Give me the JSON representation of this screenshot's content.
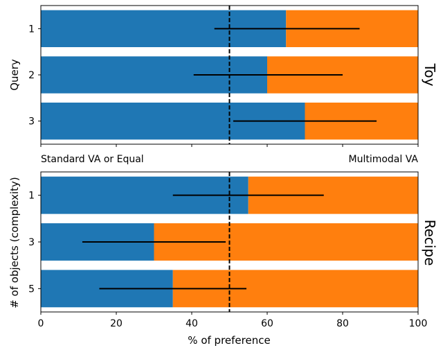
{
  "chart_data": [
    {
      "type": "bar",
      "orientation": "horizontal",
      "stacked": true,
      "facet_label": "Toy",
      "ylabel": "Query",
      "categories": [
        "1",
        "2",
        "3"
      ],
      "series": [
        {
          "color": "#1f77b4",
          "values": [
            65,
            60,
            70
          ]
        },
        {
          "color": "#ff7f0e",
          "values": [
            35,
            40,
            30
          ]
        }
      ],
      "error_bars": [
        {
          "center": 65,
          "low": 46,
          "high": 84.5
        },
        {
          "center": 60,
          "low": 40.5,
          "high": 80
        },
        {
          "center": 70,
          "low": 51,
          "high": 89
        }
      ],
      "xlim": [
        0,
        100
      ],
      "reference_line": 50,
      "x_end_labels": {
        "left": "Standard VA or Equal",
        "right": "Multimodal VA"
      }
    },
    {
      "type": "bar",
      "orientation": "horizontal",
      "stacked": true,
      "facet_label": "Recipe",
      "ylabel": "# of objects (complexity)",
      "xlabel": "% of preference",
      "categories": [
        "1",
        "3",
        "5"
      ],
      "series": [
        {
          "color": "#1f77b4",
          "values": [
            55,
            30,
            35
          ]
        },
        {
          "color": "#ff7f0e",
          "values": [
            45,
            70,
            65
          ]
        }
      ],
      "error_bars": [
        {
          "center": 55,
          "low": 35,
          "high": 75
        },
        {
          "center": 30,
          "low": 11,
          "high": 49
        },
        {
          "center": 35,
          "low": 15.5,
          "high": 54.5
        }
      ],
      "xlim": [
        0,
        100
      ],
      "xticks": [
        "0",
        "20",
        "40",
        "60",
        "80",
        "100"
      ],
      "reference_line": 50
    }
  ]
}
